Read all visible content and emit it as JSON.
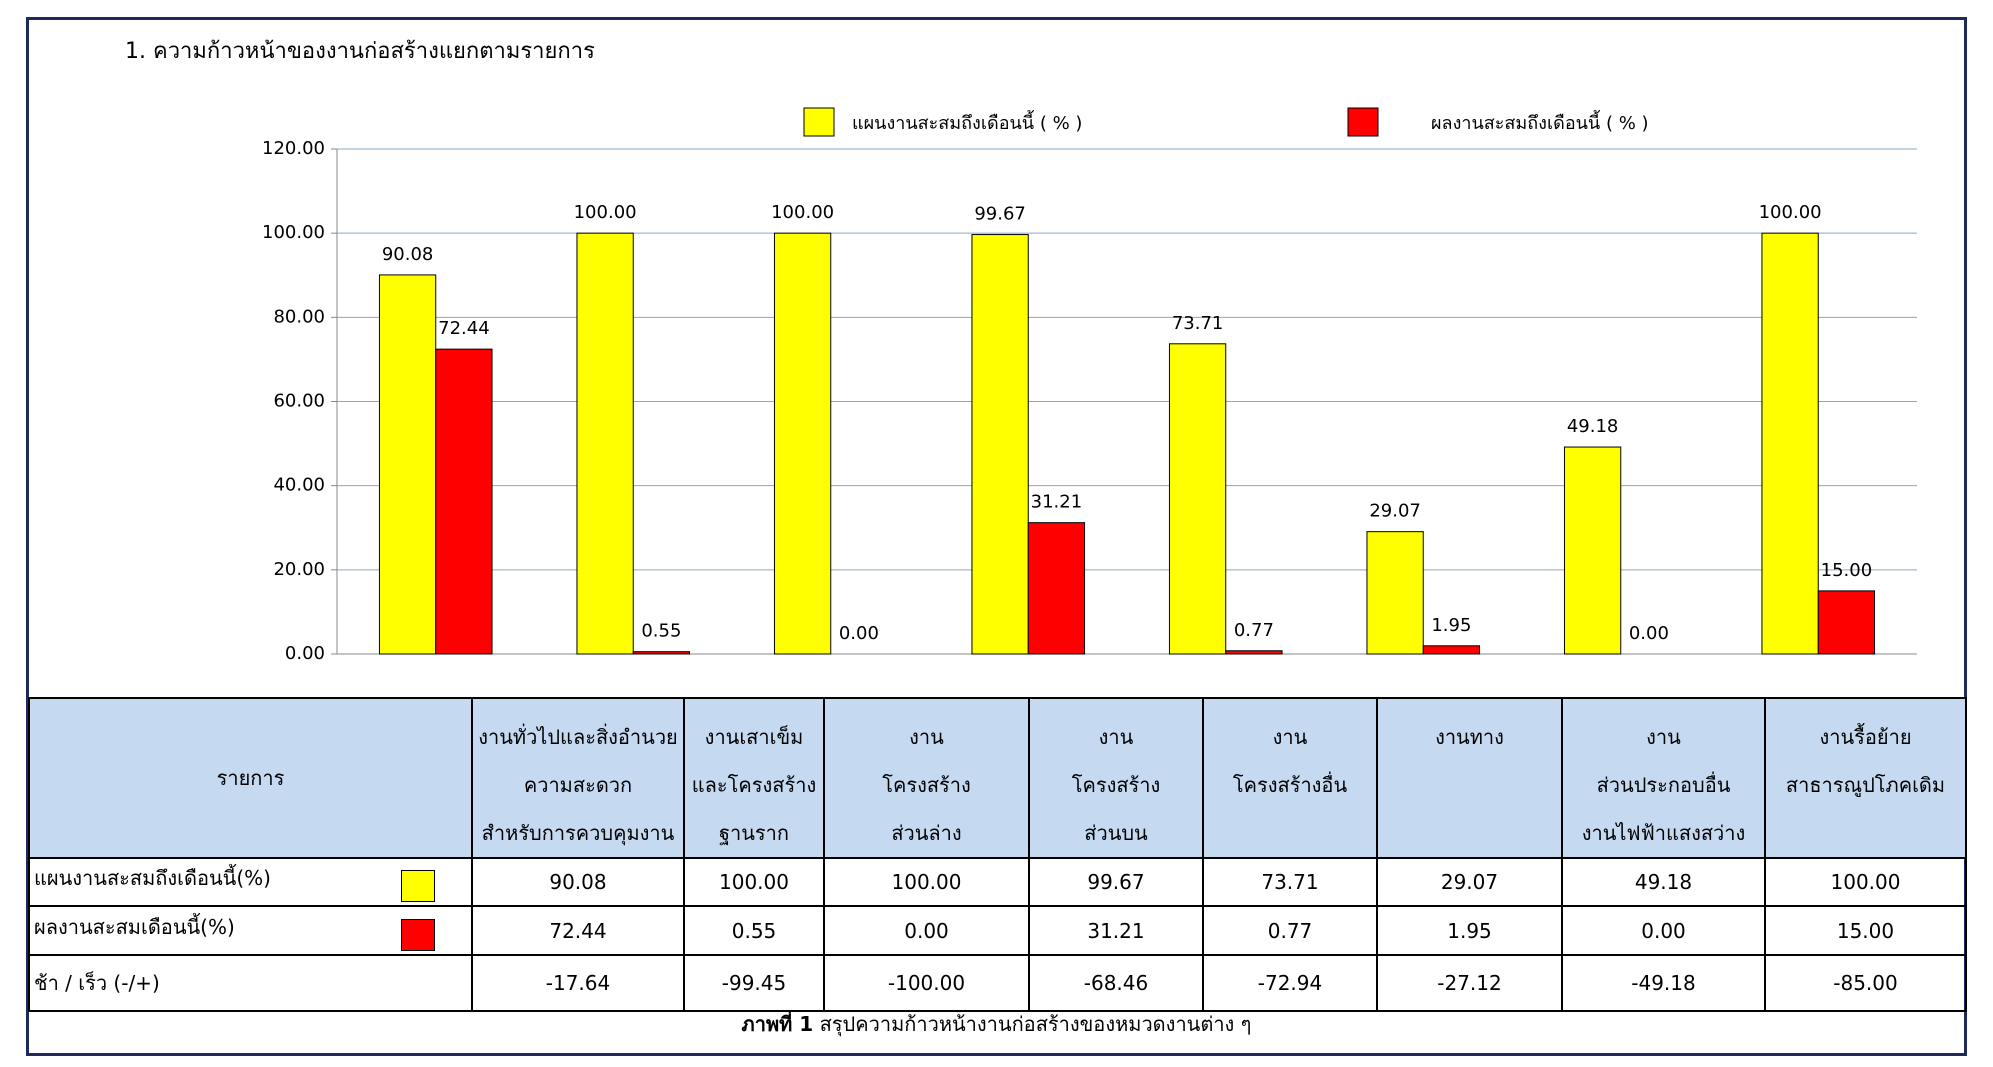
{
  "chart_data": {
    "type": "bar",
    "title": "1. ความก้าวหน้าของงานก่อสร้างแยกตามรายการ",
    "categories": [
      null,
      null,
      null,
      null,
      null,
      null,
      null,
      null
    ],
    "series": [
      {
        "name": "แผนงานสะสมถึงเดือนนี้ ( % )",
        "color": "#ffff00",
        "values": [
          90.08,
          100,
          100,
          99.67,
          73.71,
          29.07,
          49.18,
          100
        ],
        "value_labels": [
          "90.08",
          "100.00",
          "100.00",
          "99.67",
          "73.71",
          "29.07",
          "49.18",
          "100.00"
        ]
      },
      {
        "name": "ผลงานสะสมถึงเดือนนี้ ( % )",
        "color": "#ff0000",
        "values": [
          72.44,
          0.55,
          0,
          31.21,
          0.77,
          1.95,
          0,
          15
        ],
        "value_labels": [
          "72.44",
          "0.55",
          "0.00",
          "31.21",
          "0.77",
          "1.95",
          "0.00",
          "15.00"
        ]
      }
    ],
    "ylim": [
      0,
      120
    ],
    "yticks": [
      {
        "value": 0,
        "label": "0.00"
      },
      {
        "value": 20,
        "label": "20.00"
      },
      {
        "value": 40,
        "label": "40.00"
      },
      {
        "value": 60,
        "label": "60.00"
      },
      {
        "value": 80,
        "label": "80.00"
      },
      {
        "value": 100,
        "label": "100.00"
      },
      {
        "value": 120,
        "label": "120.00"
      }
    ],
    "grid": true
  },
  "table": {
    "header": [
      [
        "รายการ"
      ],
      [
        "งานทั่วไปและสิ่งอำนวย",
        "ความสะดวก",
        "สำหรับการควบคุมงาน"
      ],
      [
        "งานเสาเข็ม",
        "และโครงสร้าง",
        "ฐานราก"
      ],
      [
        "งาน",
        "โครงสร้าง",
        "ส่วนล่าง"
      ],
      [
        "งาน",
        "โครงสร้าง",
        "ส่วนบน"
      ],
      [
        "งาน",
        "โครงสร้างอื่น"
      ],
      [
        "งานทาง"
      ],
      [
        "งาน",
        "ส่วนประกอบอื่น",
        "งานไฟฟ้าแสงสว่าง"
      ],
      [
        "งานรื้อย้าย",
        "สาธารณูปโภคเดิม"
      ]
    ],
    "rows": [
      [
        "แผนงานสะสมถึงเดือนนี้(%)",
        "90.08",
        "100.00",
        "100.00",
        "99.67",
        "73.71",
        "29.07",
        "49.18",
        "100.00"
      ],
      [
        "ผลงานสะสมเดือนนี้(%)",
        "72.44",
        "0.55",
        "0.00",
        "31.21",
        "0.77",
        "1.95",
        "0.00",
        "15.00"
      ],
      [
        "ช้า / เร็ว  (-/+)",
        "-17.64",
        "-99.45",
        "-100.00",
        "-68.46",
        "-72.94",
        "-27.12",
        "-49.18",
        "-85.00"
      ]
    ]
  },
  "caption": {
    "bold": "ภาพที่ 1",
    "text": "สรุปความก้าวหน้างานก่อสร้างของหมวดงานต่าง ๆ"
  }
}
